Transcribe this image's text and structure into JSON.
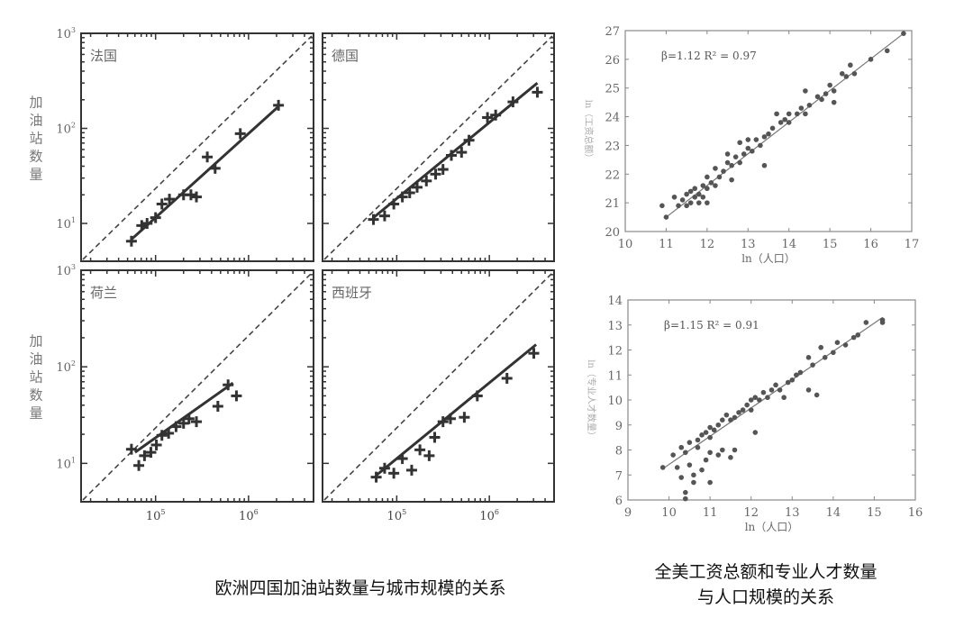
{
  "chart_data": [
    {
      "type": "scatter",
      "group": "europe",
      "title": "法国",
      "ylabel": "加油站数量",
      "xscale": "log",
      "yscale": "log",
      "xlim": [
        15800,
        5000000
      ],
      "ylim": [
        4,
        1000
      ],
      "yticks": [
        {
          "v": 1000,
          "base": "10",
          "exp": "3"
        },
        {
          "v": 100,
          "base": "10",
          "exp": "2"
        },
        {
          "v": 10,
          "base": "10",
          "exp": "1"
        }
      ],
      "points": [
        [
          55000,
          6.5
        ],
        [
          71000,
          9.5
        ],
        [
          81000,
          10
        ],
        [
          100000,
          11.5
        ],
        [
          117000,
          16
        ],
        [
          141000,
          18
        ],
        [
          200000,
          20
        ],
        [
          240000,
          20
        ],
        [
          275000,
          19
        ],
        [
          360000,
          50
        ],
        [
          437000,
          38
        ],
        [
          815000,
          88
        ],
        [
          2100000,
          175
        ]
      ],
      "fit": [
        [
          55000,
          6.8
        ],
        [
          2100000,
          170
        ]
      ]
    },
    {
      "type": "scatter",
      "group": "europe",
      "title": "德国",
      "xscale": "log",
      "yscale": "log",
      "xlim": [
        15800,
        5000000
      ],
      "ylim": [
        4,
        1000
      ],
      "points": [
        [
          56000,
          11
        ],
        [
          74000,
          12
        ],
        [
          93000,
          16
        ],
        [
          115000,
          19
        ],
        [
          138000,
          21
        ],
        [
          166000,
          24
        ],
        [
          209000,
          28
        ],
        [
          263000,
          33
        ],
        [
          316000,
          37
        ],
        [
          389000,
          52
        ],
        [
          501000,
          56
        ],
        [
          603000,
          75
        ],
        [
          955000,
          130
        ],
        [
          1170000,
          138
        ],
        [
          1800000,
          190
        ],
        [
          3300000,
          240
        ]
      ],
      "fit": [
        [
          56000,
          11.5
        ],
        [
          3300000,
          300
        ]
      ]
    },
    {
      "type": "scatter",
      "group": "europe",
      "title": "荷兰",
      "ylabel": "加油站数量",
      "xscale": "log",
      "yscale": "log",
      "xlim": [
        15800,
        5000000
      ],
      "ylim": [
        4,
        1000
      ],
      "yticks": [
        {
          "v": 1000,
          "base": "10",
          "exp": "3"
        },
        {
          "v": 100,
          "base": "10",
          "exp": "2"
        },
        {
          "v": 10,
          "base": "10",
          "exp": "1"
        }
      ],
      "xticks": [
        {
          "v": 100000,
          "base": "10",
          "exp": "5"
        },
        {
          "v": 1000000,
          "base": "10",
          "exp": "6"
        }
      ],
      "points": [
        [
          55000,
          14
        ],
        [
          66000,
          9.5
        ],
        [
          76000,
          12
        ],
        [
          89000,
          13
        ],
        [
          102000,
          15.5
        ],
        [
          117000,
          19.5
        ],
        [
          138000,
          20.5
        ],
        [
          166000,
          24
        ],
        [
          200000,
          26
        ],
        [
          229000,
          29
        ],
        [
          275000,
          27
        ],
        [
          468000,
          39
        ],
        [
          603000,
          65
        ],
        [
          741000,
          50
        ]
      ],
      "fit": [
        [
          60000,
          13
        ],
        [
          680000,
          68
        ]
      ]
    },
    {
      "type": "scatter",
      "group": "europe",
      "title": "西班牙",
      "xscale": "log",
      "yscale": "log",
      "xlim": [
        15800,
        5000000
      ],
      "ylim": [
        4,
        1000
      ],
      "xticks": [
        {
          "v": 100000,
          "base": "10",
          "exp": "5"
        },
        {
          "v": 1000000,
          "base": "10",
          "exp": "6"
        }
      ],
      "points": [
        [
          60000,
          7.2
        ],
        [
          74000,
          8.9
        ],
        [
          93000,
          7.9
        ],
        [
          115000,
          11.2
        ],
        [
          145000,
          8.5
        ],
        [
          178000,
          13.8
        ],
        [
          224000,
          12
        ],
        [
          257000,
          18.6
        ],
        [
          316000,
          27
        ],
        [
          380000,
          29
        ],
        [
          537000,
          30
        ],
        [
          741000,
          50
        ],
        [
          1550000,
          76
        ],
        [
          3020000,
          138
        ]
      ],
      "fit": [
        [
          60000,
          7.5
        ],
        [
          3200000,
          170
        ]
      ]
    },
    {
      "type": "scatter",
      "group": "usa",
      "annotation": "β=1.12   R² = 0.97",
      "xlabel": "ln（人口）",
      "ylabel": "ln（工资总额）",
      "xlim": [
        10,
        17
      ],
      "ylim": [
        20,
        27
      ],
      "xticks": [
        "10",
        "11",
        "12",
        "13",
        "14",
        "15",
        "16",
        "17"
      ],
      "yticks": [
        "20",
        "21",
        "22",
        "23",
        "24",
        "25",
        "26",
        "27"
      ],
      "points": [
        [
          10.9,
          20.9
        ],
        [
          11,
          20.5
        ],
        [
          11.2,
          21.2
        ],
        [
          11.3,
          20.9
        ],
        [
          11.4,
          21.1
        ],
        [
          11.5,
          21.3
        ],
        [
          11.5,
          20.9
        ],
        [
          11.6,
          21.4
        ],
        [
          11.6,
          21.0
        ],
        [
          11.7,
          21.2
        ],
        [
          11.7,
          21.5
        ],
        [
          11.8,
          21.3
        ],
        [
          11.8,
          21.0
        ],
        [
          11.9,
          21.6
        ],
        [
          11.9,
          21.2
        ],
        [
          12.0,
          21.5
        ],
        [
          12.0,
          21.9
        ],
        [
          12.0,
          21.0
        ],
        [
          12.1,
          21.7
        ],
        [
          12.2,
          22.2
        ],
        [
          12.2,
          21.6
        ],
        [
          12.3,
          21.9
        ],
        [
          12.4,
          22.1
        ],
        [
          12.5,
          22.4
        ],
        [
          12.5,
          22.7
        ],
        [
          12.6,
          22.3
        ],
        [
          12.6,
          21.8
        ],
        [
          12.7,
          22.6
        ],
        [
          12.8,
          22.4
        ],
        [
          12.8,
          23.1
        ],
        [
          12.9,
          22.7
        ],
        [
          13.0,
          22.9
        ],
        [
          13.0,
          23.2
        ],
        [
          13.1,
          22.8
        ],
        [
          13.2,
          23.2
        ],
        [
          13.3,
          23.0
        ],
        [
          13.4,
          23.3
        ],
        [
          13.4,
          22.3
        ],
        [
          13.5,
          23.4
        ],
        [
          13.6,
          23.6
        ],
        [
          13.7,
          24.1
        ],
        [
          13.8,
          23.8
        ],
        [
          13.9,
          23.9
        ],
        [
          14.0,
          24.1
        ],
        [
          14.0,
          23.8
        ],
        [
          14.2,
          24.1
        ],
        [
          14.3,
          24.3
        ],
        [
          14.4,
          24.9
        ],
        [
          14.4,
          24.1
        ],
        [
          14.5,
          24.4
        ],
        [
          14.7,
          24.7
        ],
        [
          14.8,
          24.6
        ],
        [
          14.9,
          24.8
        ],
        [
          15.0,
          25.1
        ],
        [
          15.1,
          24.9
        ],
        [
          15.1,
          24.5
        ],
        [
          15.3,
          25.5
        ],
        [
          15.4,
          25.4
        ],
        [
          15.5,
          25.8
        ],
        [
          15.6,
          25.5
        ],
        [
          16.0,
          26.0
        ],
        [
          16.4,
          26.3
        ],
        [
          16.8,
          26.9
        ]
      ],
      "fit": [
        [
          11.0,
          20.5
        ],
        [
          16.8,
          26.9
        ]
      ]
    },
    {
      "type": "scatter",
      "group": "usa",
      "annotation": "β=1.15   R² = 0.91",
      "xlabel": "ln（人口）",
      "ylabel": "ln（专业人才数量）",
      "xlim": [
        9,
        16
      ],
      "ylim": [
        6,
        14
      ],
      "xticks": [
        "9",
        "10",
        "11",
        "12",
        "13",
        "14",
        "15",
        "16"
      ],
      "yticks": [
        "6",
        "7",
        "8",
        "9",
        "10",
        "11",
        "12",
        "13",
        "14"
      ],
      "points": [
        [
          9.85,
          7.3
        ],
        [
          10.1,
          7.8
        ],
        [
          10.2,
          7.3
        ],
        [
          10.3,
          8.1
        ],
        [
          10.3,
          6.9
        ],
        [
          10.4,
          6.3
        ],
        [
          10.4,
          6.05
        ],
        [
          10.4,
          7.9
        ],
        [
          10.5,
          8.3
        ],
        [
          10.5,
          7.4
        ],
        [
          10.6,
          7.0
        ],
        [
          10.6,
          6.7
        ],
        [
          10.7,
          8.4
        ],
        [
          10.7,
          8.1
        ],
        [
          10.8,
          8.6
        ],
        [
          10.8,
          7.2
        ],
        [
          10.9,
          8.7
        ],
        [
          10.9,
          7.6
        ],
        [
          11.0,
          8.9
        ],
        [
          11.0,
          8.5
        ],
        [
          11.0,
          6.7
        ],
        [
          11.0,
          7.9
        ],
        [
          11.1,
          8.8
        ],
        [
          11.2,
          9.0
        ],
        [
          11.2,
          7.8
        ],
        [
          11.3,
          9.2
        ],
        [
          11.3,
          8.0
        ],
        [
          11.4,
          9.4
        ],
        [
          11.5,
          9.2
        ],
        [
          11.5,
          7.7
        ],
        [
          11.6,
          9.3
        ],
        [
          11.6,
          8.0
        ],
        [
          11.7,
          9.5
        ],
        [
          11.8,
          9.6
        ],
        [
          11.9,
          9.8
        ],
        [
          12.0,
          10.0
        ],
        [
          12.0,
          9.6
        ],
        [
          12.1,
          10.1
        ],
        [
          12.1,
          8.7
        ],
        [
          12.2,
          10.0
        ],
        [
          12.3,
          10.3
        ],
        [
          12.4,
          10.1
        ],
        [
          12.5,
          10.4
        ],
        [
          12.6,
          10.6
        ],
        [
          12.7,
          10.4
        ],
        [
          12.8,
          10.1
        ],
        [
          12.9,
          10.7
        ],
        [
          13.0,
          10.8
        ],
        [
          13.1,
          11.0
        ],
        [
          13.2,
          11.1
        ],
        [
          13.4,
          11.7
        ],
        [
          13.4,
          10.4
        ],
        [
          13.5,
          11.4
        ],
        [
          13.6,
          10.2
        ],
        [
          13.7,
          12.1
        ],
        [
          13.8,
          11.7
        ],
        [
          14.0,
          11.9
        ],
        [
          14.1,
          12.3
        ],
        [
          14.3,
          12.2
        ],
        [
          14.5,
          12.5
        ],
        [
          14.6,
          12.6
        ],
        [
          14.8,
          13.1
        ],
        [
          15.2,
          13.2
        ],
        [
          15.2,
          13.1
        ]
      ],
      "fit": [
        [
          9.85,
          7.25
        ],
        [
          15.2,
          13.3
        ]
      ]
    }
  ],
  "captions": {
    "europe": "欧洲四国加油站数量与城市规模的关系",
    "usa_line1": "全美工资总额和专业人才数量",
    "usa_line2": "与人口规模的关系"
  },
  "colors": {
    "ink": "#3a3a3a",
    "point": "#555555",
    "axis_text": "#666666"
  }
}
